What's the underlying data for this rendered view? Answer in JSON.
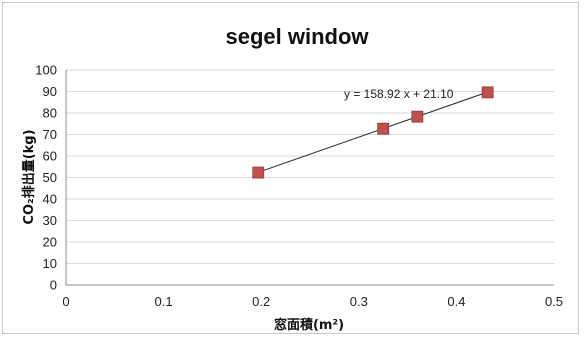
{
  "chart_data": {
    "type": "scatter",
    "title": "segel window",
    "xlabel": "窓面積(m²)",
    "ylabel": "CO₂排出量(kg)",
    "xlim": [
      0,
      0.5
    ],
    "ylim": [
      0,
      100
    ],
    "x_ticks": [
      "0",
      "0.1",
      "0.2",
      "0.3",
      "0.4",
      "0.5"
    ],
    "y_ticks": [
      "0",
      "10",
      "20",
      "30",
      "40",
      "50",
      "60",
      "70",
      "80",
      "90",
      "100"
    ],
    "grid": true,
    "points": [
      {
        "x": 0.197,
        "y": 52.3
      },
      {
        "x": 0.325,
        "y": 72.7
      },
      {
        "x": 0.36,
        "y": 78.3
      },
      {
        "x": 0.432,
        "y": 89.6
      }
    ],
    "trendline": {
      "slope": 158.92,
      "intercept": 21.1,
      "x_range": [
        0.197,
        0.432
      ],
      "equation": "y = 158.92 x + 21.10"
    },
    "colors": {
      "marker": "#c0504d",
      "marker_border": "#8b3a38",
      "gridline": "#d9d9d9",
      "axis": "#8c8c8c",
      "trendline": "#222222"
    }
  }
}
